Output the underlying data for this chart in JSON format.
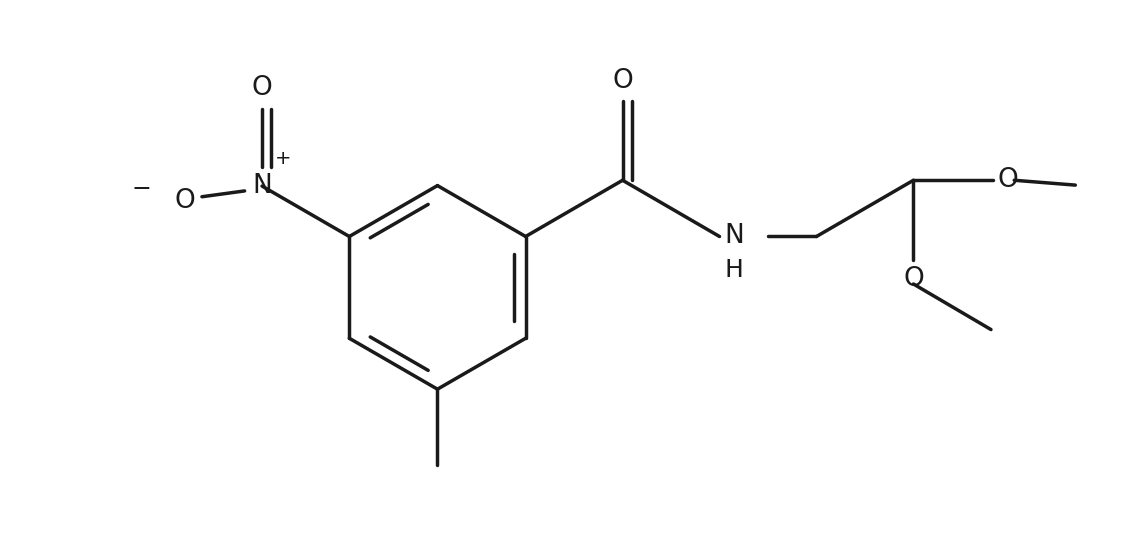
{
  "background_color": "#ffffff",
  "line_color": "#1a1a1a",
  "line_width": 2.5,
  "font_size": 16,
  "figsize": [
    11.27,
    5.36
  ],
  "dpi": 100,
  "xlim": [
    0,
    11
  ],
  "ylim": [
    0,
    5.5
  ]
}
